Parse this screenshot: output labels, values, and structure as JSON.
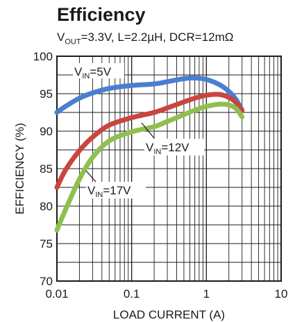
{
  "title": "Efficiency",
  "subtitle": {
    "vout_prefix": "V",
    "vout_sub": "OUT",
    "rest": "=3.3V, L=2.2µH, DCR=12mΩ"
  },
  "chart_data": {
    "type": "line",
    "title": "Efficiency",
    "subtitle": "VOUT=3.3V, L=2.2µH, DCR=12mΩ",
    "xlabel": "LOAD CURRENT (A)",
    "ylabel": "EFFICIENCY (%)",
    "xscale": "log",
    "xlim": [
      0.01,
      10
    ],
    "ylim": [
      70,
      100
    ],
    "x_ticks": [
      "0.01",
      "0.1",
      "1",
      "10"
    ],
    "y_ticks": [
      "100",
      "95",
      "90",
      "85",
      "80",
      "75",
      "70"
    ],
    "grid": true,
    "series": [
      {
        "name": "VIN=5V",
        "label_prefix": "V",
        "label_sub": "IN",
        "label_rest": "=5V",
        "color": "#4a7fd0",
        "x": [
          0.01,
          0.013,
          0.02,
          0.03,
          0.05,
          0.1,
          0.2,
          0.3,
          0.5,
          0.7,
          1.0,
          1.5,
          2.0,
          2.5,
          3.0
        ],
        "y": [
          92.5,
          93.3,
          94.4,
          95.1,
          95.7,
          96.1,
          96.3,
          96.6,
          97.0,
          97.1,
          96.9,
          96.2,
          95.3,
          94.2,
          92.8
        ]
      },
      {
        "name": "VIN=12V",
        "label_prefix": "V",
        "label_sub": "IN",
        "label_rest": "=12V",
        "color": "#c9453f",
        "x": [
          0.01,
          0.013,
          0.02,
          0.03,
          0.05,
          0.1,
          0.2,
          0.3,
          0.5,
          0.7,
          1.0,
          1.5,
          2.0,
          2.5,
          3.0
        ],
        "y": [
          82.5,
          84.8,
          87.4,
          89.2,
          90.8,
          91.8,
          92.5,
          93.1,
          93.9,
          94.4,
          94.8,
          94.9,
          94.5,
          93.8,
          92.7
        ]
      },
      {
        "name": "VIN=17V",
        "label_prefix": "V",
        "label_sub": "IN",
        "label_rest": "=17V",
        "color": "#8fc04f",
        "x": [
          0.01,
          0.013,
          0.02,
          0.03,
          0.05,
          0.1,
          0.2,
          0.3,
          0.5,
          0.7,
          1.0,
          1.5,
          2.0,
          2.5,
          3.0
        ],
        "y": [
          76.8,
          79.5,
          83.6,
          86.5,
          88.7,
          89.9,
          90.6,
          91.3,
          92.2,
          92.8,
          93.3,
          93.6,
          93.5,
          93.0,
          91.9
        ]
      }
    ]
  }
}
